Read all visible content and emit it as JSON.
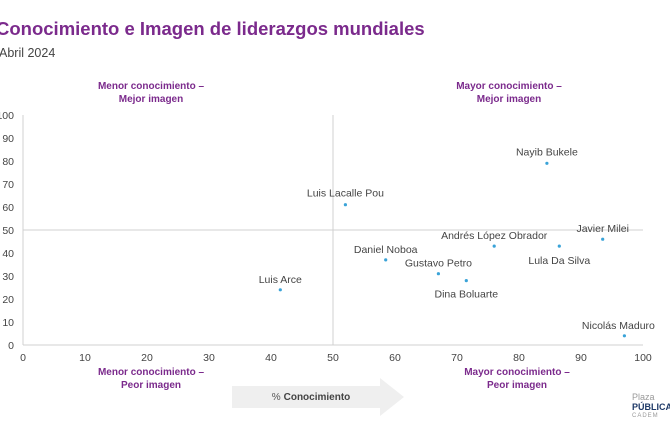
{
  "title": "Conocimiento e Imagen de liderazgos mundiales",
  "subtitle": "Abril 2024",
  "quadrants": {
    "top_left": [
      "Menor conocimiento –",
      "Mejor imagen"
    ],
    "top_right": [
      "Mayor conocimiento –",
      "Mejor imagen"
    ],
    "bottom_left": [
      "Menor conocimiento –",
      "Peor imagen"
    ],
    "bottom_right": [
      "Mayor conocimiento –",
      "Peor imagen"
    ]
  },
  "x_arrow": {
    "prefix": "%",
    "label": "Conocimiento"
  },
  "logo": {
    "line1": "Plaza",
    "line2": "PÚBLICA",
    "line3": "CADEM"
  },
  "colors": {
    "accent": "#7b2a8c",
    "point": "#3aa3d8",
    "grid": "#d0d0d0",
    "arrow": "#efefef"
  },
  "chart_data": {
    "type": "scatter",
    "xlim": [
      0,
      100
    ],
    "ylim": [
      0,
      100
    ],
    "x_ticks": [
      0,
      10,
      20,
      30,
      40,
      50,
      60,
      70,
      80,
      90,
      100
    ],
    "y_ticks": [
      0,
      10,
      20,
      30,
      40,
      50,
      60,
      70,
      80,
      90,
      100
    ],
    "y_tick_labels": [
      "0",
      "10",
      "20",
      "30",
      "40",
      "50",
      "60",
      "70",
      "80",
      "90",
      "100"
    ],
    "reference_lines": {
      "x": 50,
      "y": 50
    },
    "grid": false,
    "points": [
      {
        "label": "Nayib Bukele",
        "x": 84.5,
        "y": 79
      },
      {
        "label": "Luis Lacalle Pou",
        "x": 52,
        "y": 61
      },
      {
        "label": "Javier Milei",
        "x": 93.5,
        "y": 46
      },
      {
        "label": "Andrés López Obrador",
        "x": 76,
        "y": 43
      },
      {
        "label": "Lula Da Silva",
        "x": 86.5,
        "y": 43
      },
      {
        "label": "Daniel Noboa",
        "x": 58.5,
        "y": 37
      },
      {
        "label": "Gustavo Petro",
        "x": 67,
        "y": 31
      },
      {
        "label": "Dina Boluarte",
        "x": 71.5,
        "y": 28
      },
      {
        "label": "Luis Arce",
        "x": 41.5,
        "y": 24
      },
      {
        "label": "Nicolás Maduro",
        "x": 97,
        "y": 4
      }
    ]
  }
}
